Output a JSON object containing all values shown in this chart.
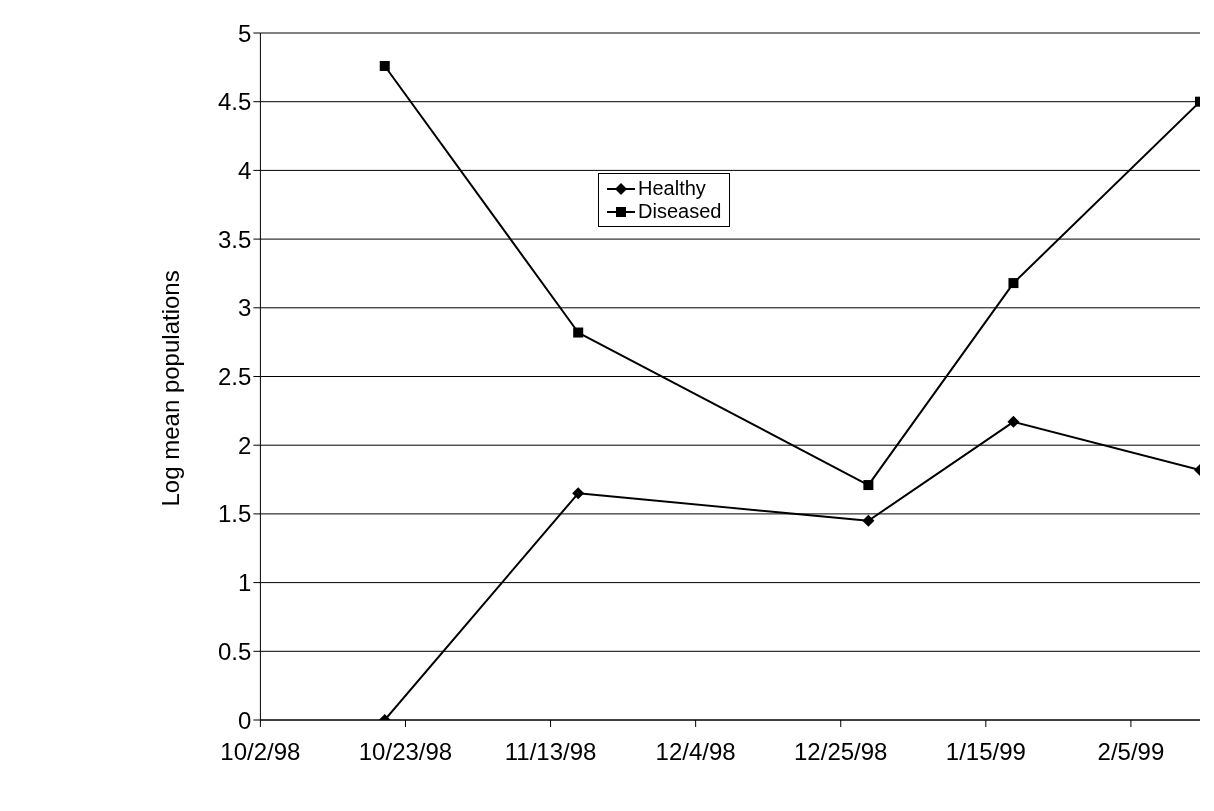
{
  "chart_data": {
    "type": "line",
    "ylabel": "Log mean populations",
    "x": [
      "1998-10-20",
      "1998-11-17",
      "1998-12-29",
      "1999-01-19",
      "1999-02-15"
    ],
    "series": [
      {
        "name": "Healthy",
        "color": "#000000",
        "marker": "diamond",
        "values": [
          0,
          1.65,
          1.45,
          2.17,
          1.82
        ]
      },
      {
        "name": "Diseased",
        "color": "#000000",
        "marker": "square",
        "values": [
          4.76,
          2.82,
          1.71,
          3.18,
          4.5
        ]
      }
    ],
    "xlim": [
      "1998-10-02",
      "1999-02-15"
    ],
    "xticks": [
      {
        "value": "1998-10-02",
        "label": "10/2/98"
      },
      {
        "value": "1998-10-23",
        "label": "10/23/98"
      },
      {
        "value": "1998-11-13",
        "label": "11/13/98"
      },
      {
        "value": "1998-12-04",
        "label": "12/4/98"
      },
      {
        "value": "1998-12-25",
        "label": "12/25/98"
      },
      {
        "value": "1999-01-15",
        "label": "1/15/99"
      },
      {
        "value": "1999-02-05",
        "label": "2/5/99"
      }
    ],
    "ylim": [
      0,
      5
    ],
    "yticks": [
      0,
      0.5,
      1,
      1.5,
      2,
      2.5,
      3,
      3.5,
      4,
      4.5,
      5
    ],
    "grid": "y",
    "legend": "top",
    "line_style": "solid"
  }
}
